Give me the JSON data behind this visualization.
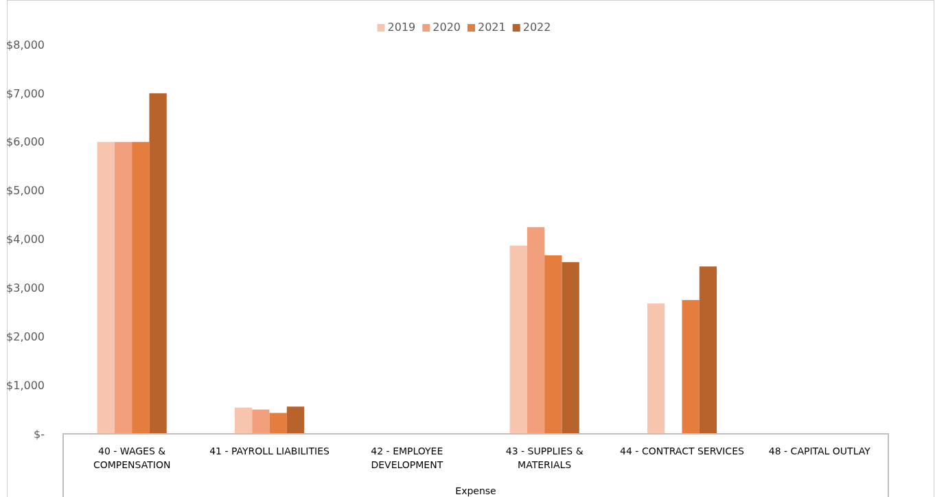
{
  "chart_data": {
    "type": "bar",
    "xlabel": "Expense",
    "categories": [
      "40 - WAGES & COMPENSATION",
      "41 - PAYROLL LIABILITIES",
      "42 - EMPLOYEE DEVELOPMENT",
      "43 - SUPPLIES & MATERIALS",
      "44 - CONTRACT SERVICES",
      "48 - CAPITAL OUTLAY"
    ],
    "series": [
      {
        "name": "2019",
        "color": "#f7c4ae",
        "values": [
          6000,
          540,
          null,
          3870,
          2680,
          null
        ]
      },
      {
        "name": "2020",
        "color": "#f2a07c",
        "values": [
          6000,
          500,
          null,
          4250,
          null,
          null
        ]
      },
      {
        "name": "2021",
        "color": "#e57d3e",
        "values": [
          6000,
          430,
          null,
          3670,
          2750,
          null
        ]
      },
      {
        "name": "2022",
        "color": "#b8622c",
        "values": [
          7000,
          560,
          null,
          3530,
          3440,
          null
        ]
      }
    ],
    "ylim": [
      0,
      8000
    ],
    "yticks": [
      {
        "value": 0,
        "label": "$-"
      },
      {
        "value": 1000,
        "label": "$1,000"
      },
      {
        "value": 2000,
        "label": "$2,000"
      },
      {
        "value": 3000,
        "label": "$3,000"
      },
      {
        "value": 4000,
        "label": "$4,000"
      },
      {
        "value": 5000,
        "label": "$5,000"
      },
      {
        "value": 6000,
        "label": "$6,000"
      },
      {
        "value": 7000,
        "label": "$7,000"
      },
      {
        "value": 8000,
        "label": "$8,000"
      }
    ],
    "grid": false,
    "legend": "top"
  }
}
